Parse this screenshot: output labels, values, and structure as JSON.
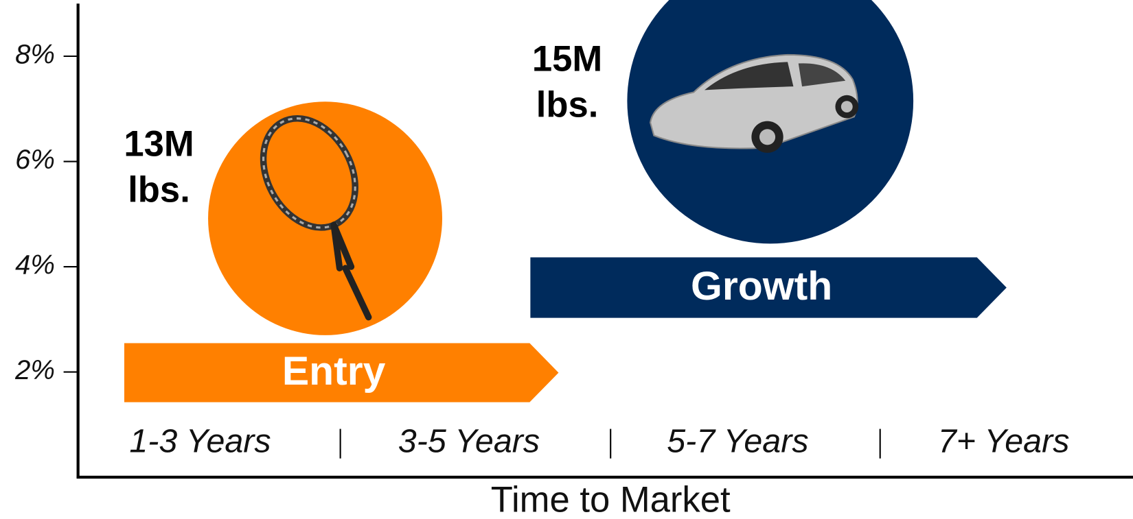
{
  "y_axis": {
    "ticks": [
      "8%",
      "6%",
      "4%",
      "2%"
    ]
  },
  "x_axis": {
    "categories": [
      "1-3 Years",
      "3-5 Years",
      "5-7 Years",
      "7+ Years"
    ],
    "title": "Time to Market"
  },
  "stages": [
    {
      "label": "Entry",
      "volume": [
        "13M",
        "lbs."
      ]
    },
    {
      "label": "Growth",
      "volume": [
        "15M",
        "lbs."
      ]
    }
  ]
}
